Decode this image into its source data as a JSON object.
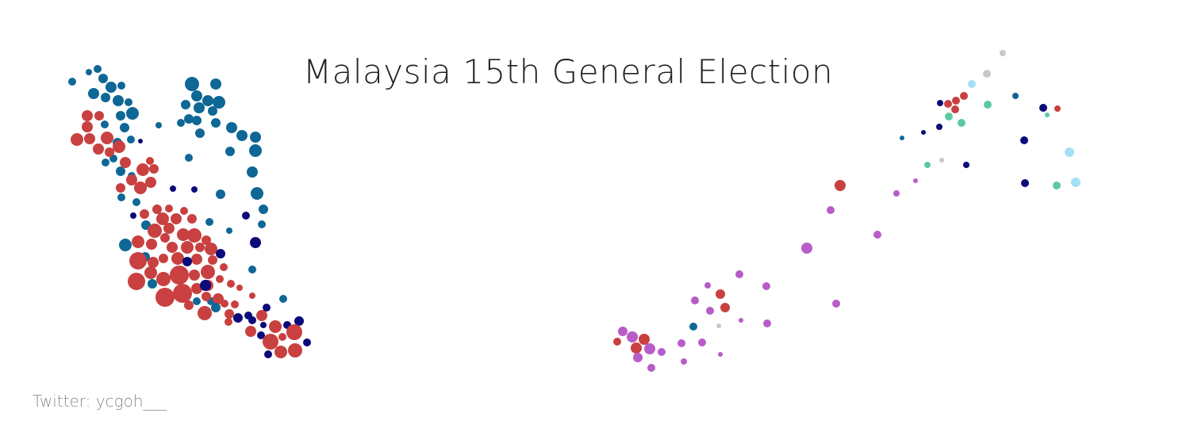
{
  "title": "Malaysia 15th General Election",
  "credit": "Twitter: ycgoh___",
  "colors": {
    "red": "#c94040",
    "teal": "#0f6796",
    "navy": "#0a0a7a",
    "purple": "#b85cc8",
    "green": "#5cc9a0",
    "lightblue": "#a6dff5",
    "grey": "#c8c8c8"
  },
  "map": {
    "peninsula": "Peninsular Malaysia",
    "borneo": "Sabah and Sarawak"
  }
}
